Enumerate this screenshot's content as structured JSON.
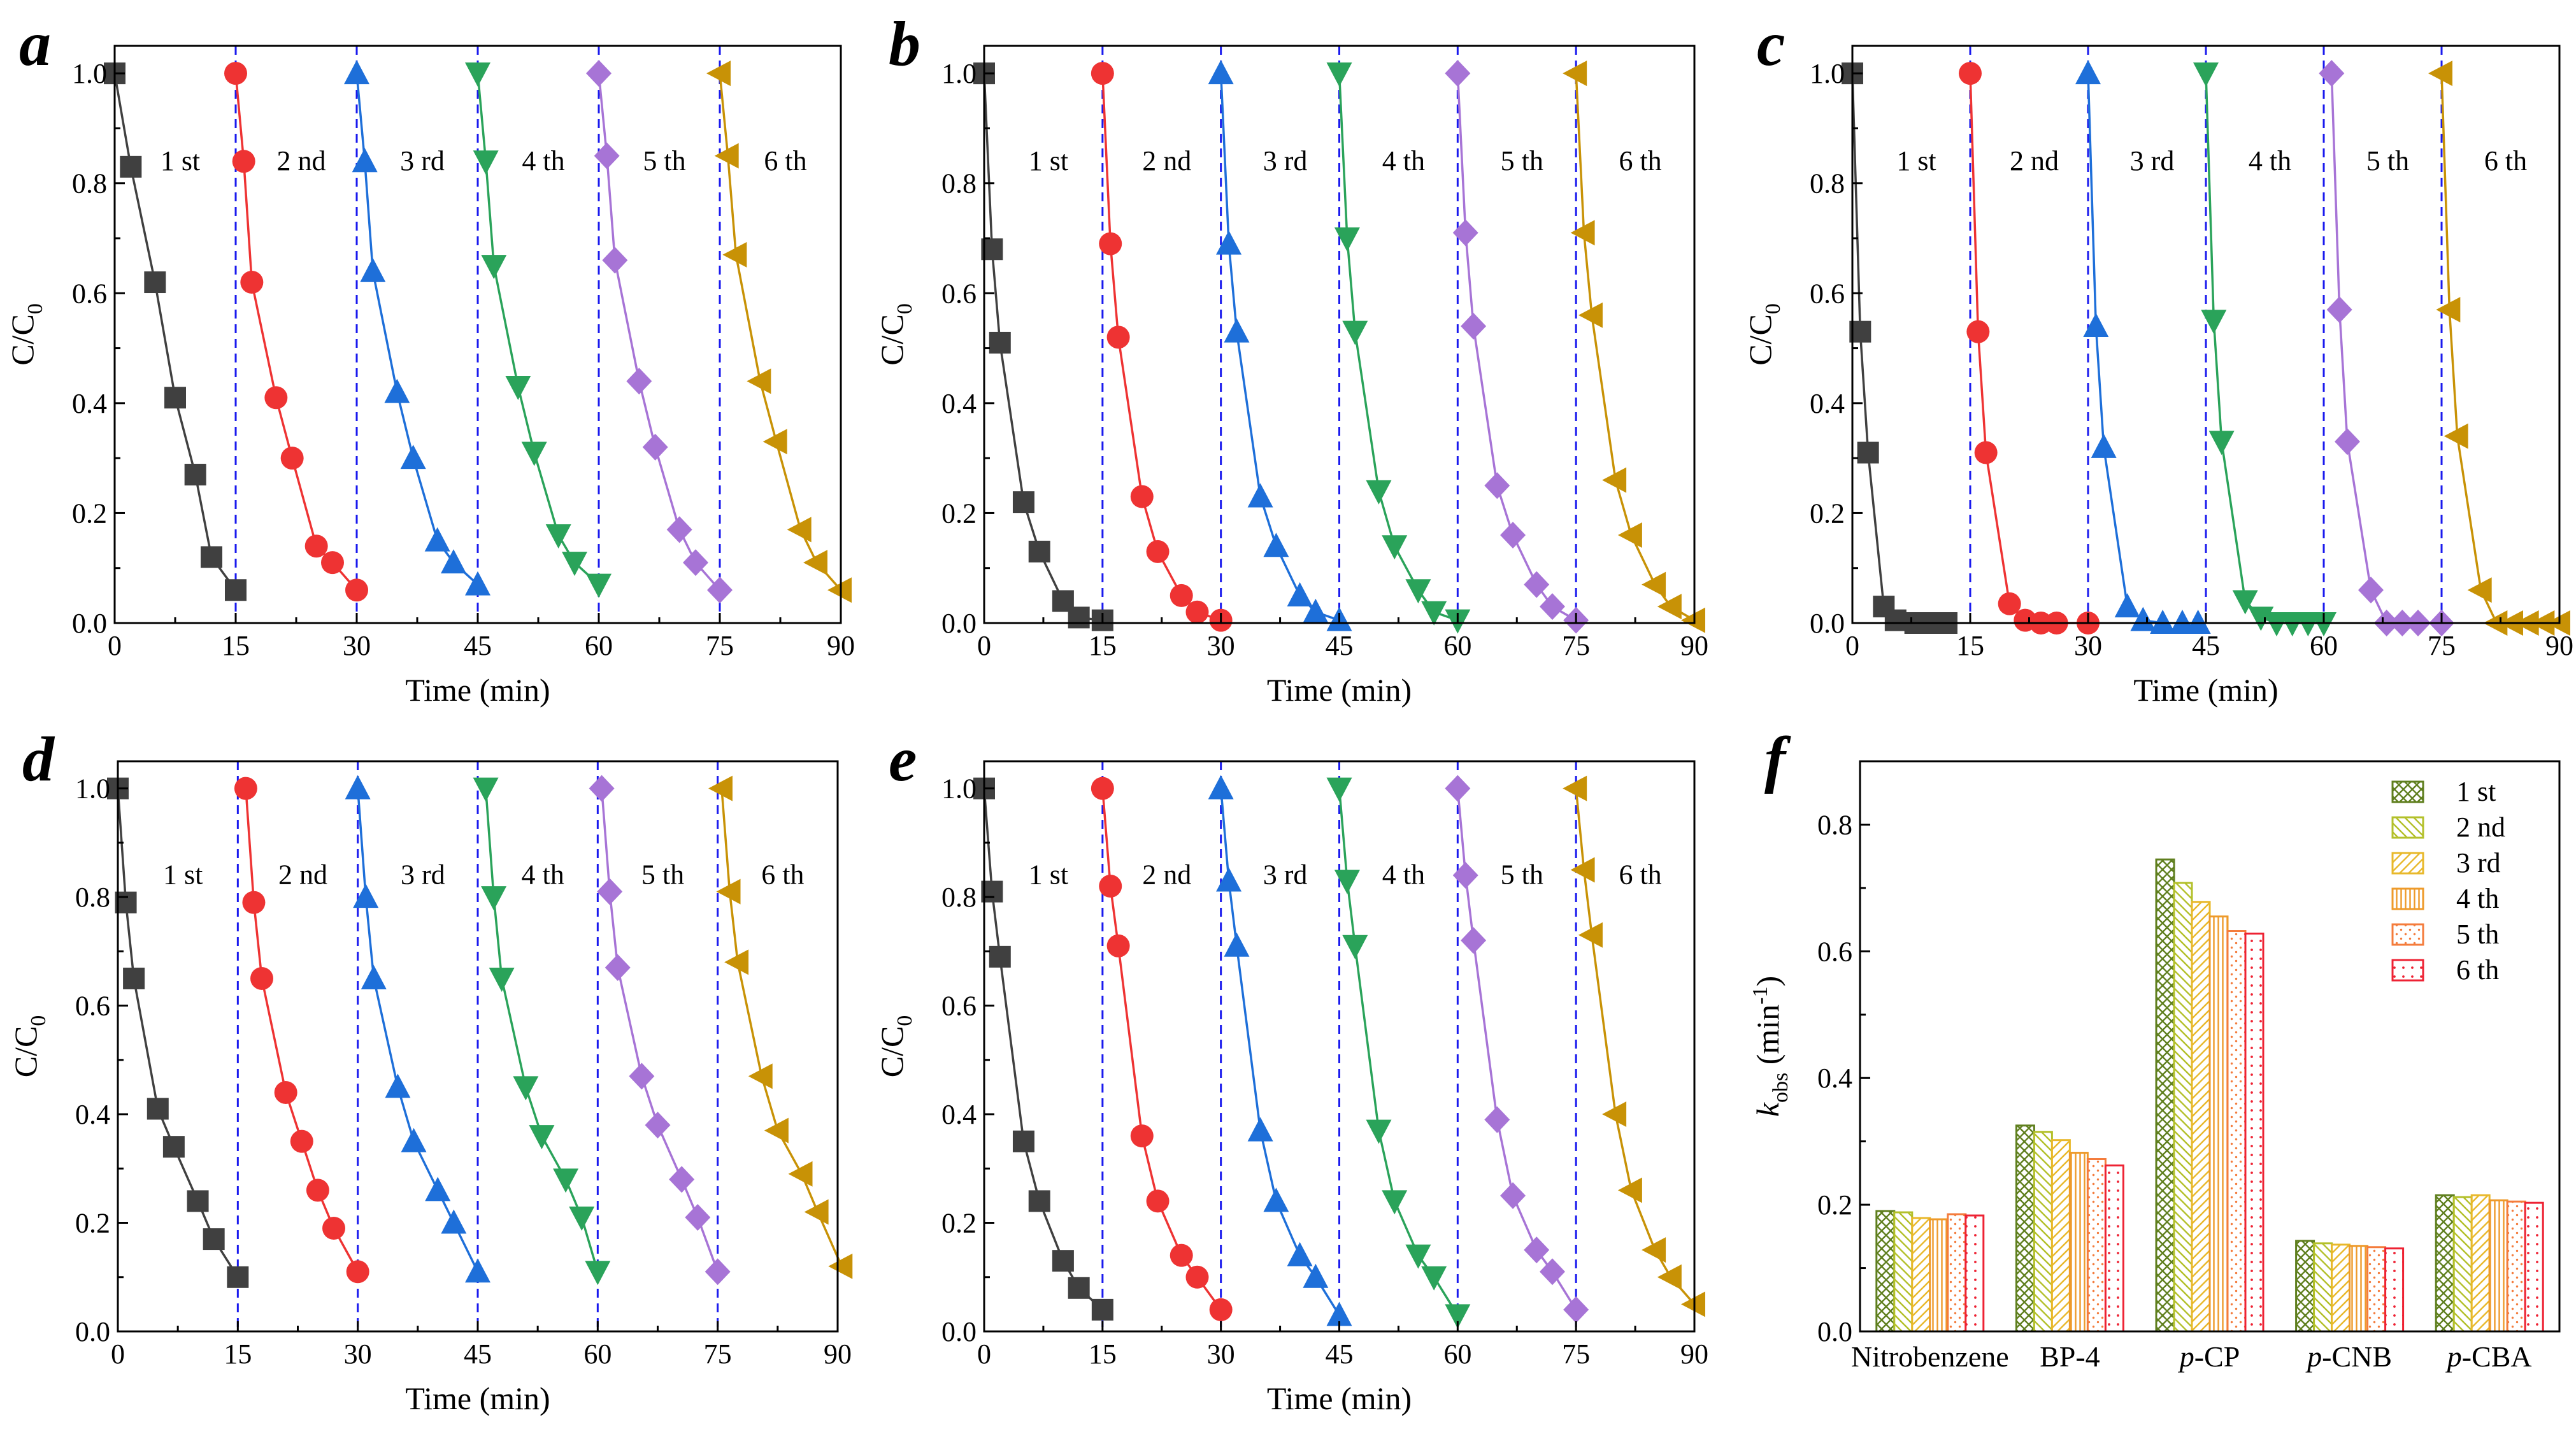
{
  "figure": {
    "run_labels": [
      "1 st",
      "2 nd",
      "3 rd",
      "4 th",
      "5 th",
      "6 th"
    ],
    "colors": {
      "run1": "#404040",
      "run2": "#ee3333",
      "run3": "#1e6fd9",
      "run4": "#2aa35a",
      "run5": "#a774d6",
      "run6": "#c89206",
      "divider": "#1a1aee",
      "bar_a": "#5f7f1e",
      "bar_b": "#b3c02a",
      "bar_c": "#e8b82a",
      "bar_d": "#ee9a2a",
      "bar_e": "#f47c3c",
      "bar_f": "#ee2233"
    }
  },
  "chart_data": [
    {
      "panel": "a",
      "type": "line",
      "xlabel": "Time (min)",
      "ylabel": "C/C",
      "ylabel_sub": "0",
      "xlim": [
        0,
        90
      ],
      "ylim": [
        0,
        1.05
      ],
      "xticks": [
        "0",
        "15",
        "30",
        "45",
        "60",
        "75",
        "90"
      ],
      "yticks": [
        "0.0",
        "0.2",
        "0.4",
        "0.6",
        "0.8",
        "1.0"
      ],
      "dividers": [
        15,
        30,
        45,
        60,
        75
      ],
      "series": [
        {
          "name": "1 st",
          "x": [
            0,
            2,
            5,
            7.5,
            10,
            12,
            15
          ],
          "y": [
            1.0,
            0.83,
            0.62,
            0.41,
            0.27,
            0.12,
            0.06
          ]
        },
        {
          "name": "2 nd",
          "x": [
            15,
            16,
            17,
            20,
            22,
            25,
            27,
            30
          ],
          "y": [
            1.0,
            0.84,
            0.62,
            0.41,
            0.3,
            0.14,
            0.11,
            0.06
          ]
        },
        {
          "name": "3 rd",
          "x": [
            30,
            31,
            32,
            35,
            37,
            40,
            42,
            45
          ],
          "y": [
            1.0,
            0.84,
            0.64,
            0.42,
            0.3,
            0.15,
            0.11,
            0.07
          ]
        },
        {
          "name": "4 th",
          "x": [
            45,
            46,
            47,
            50,
            52,
            55,
            57,
            60
          ],
          "y": [
            1.0,
            0.84,
            0.65,
            0.43,
            0.31,
            0.16,
            0.11,
            0.07
          ]
        },
        {
          "name": "5 th",
          "x": [
            60,
            61,
            62,
            65,
            67,
            70,
            72,
            75
          ],
          "y": [
            1.0,
            0.85,
            0.66,
            0.44,
            0.32,
            0.17,
            0.11,
            0.06
          ]
        },
        {
          "name": "6 th",
          "x": [
            75,
            76,
            77,
            80,
            82,
            85,
            87,
            90
          ],
          "y": [
            1.0,
            0.85,
            0.67,
            0.44,
            0.33,
            0.17,
            0.11,
            0.06
          ]
        }
      ]
    },
    {
      "panel": "b",
      "type": "line",
      "xlabel": "Time (min)",
      "ylabel": "C/C",
      "ylabel_sub": "0",
      "xlim": [
        0,
        90
      ],
      "ylim": [
        0,
        1.05
      ],
      "xticks": [
        "0",
        "15",
        "30",
        "45",
        "60",
        "75",
        "90"
      ],
      "yticks": [
        "0.0",
        "0.2",
        "0.4",
        "0.6",
        "0.8",
        "1.0"
      ],
      "dividers": [
        15,
        30,
        45,
        60,
        75
      ],
      "series": [
        {
          "name": "1 st",
          "x": [
            0,
            1,
            2,
            5,
            7,
            10,
            12,
            15
          ],
          "y": [
            1.0,
            0.68,
            0.51,
            0.22,
            0.13,
            0.04,
            0.01,
            0.005
          ]
        },
        {
          "name": "2 nd",
          "x": [
            15,
            16,
            17,
            20,
            22,
            25,
            27,
            30
          ],
          "y": [
            1.0,
            0.69,
            0.52,
            0.23,
            0.13,
            0.05,
            0.02,
            0.005
          ]
        },
        {
          "name": "3 rd",
          "x": [
            30,
            31,
            32,
            35,
            37,
            40,
            42,
            45
          ],
          "y": [
            1.0,
            0.69,
            0.53,
            0.23,
            0.14,
            0.05,
            0.02,
            0.005
          ]
        },
        {
          "name": "4 th",
          "x": [
            45,
            46,
            47,
            50,
            52,
            55,
            57,
            60
          ],
          "y": [
            1.0,
            0.7,
            0.53,
            0.24,
            0.14,
            0.06,
            0.02,
            0.005
          ]
        },
        {
          "name": "5 th",
          "x": [
            60,
            61,
            62,
            65,
            67,
            70,
            72,
            75
          ],
          "y": [
            1.0,
            0.71,
            0.54,
            0.25,
            0.16,
            0.07,
            0.03,
            0.005
          ]
        },
        {
          "name": "6 th",
          "x": [
            75,
            76,
            77,
            80,
            82,
            85,
            87,
            90
          ],
          "y": [
            1.0,
            0.71,
            0.56,
            0.26,
            0.16,
            0.07,
            0.03,
            0.005
          ]
        }
      ]
    },
    {
      "panel": "c",
      "type": "line",
      "xlabel": "Time (min)",
      "ylabel": "C/C",
      "ylabel_sub": "0",
      "xlim": [
        0,
        90
      ],
      "ylim": [
        0,
        1.05
      ],
      "xticks": [
        "0",
        "15",
        "30",
        "45",
        "60",
        "75",
        "90"
      ],
      "yticks": [
        "0.0",
        "0.2",
        "0.4",
        "0.6",
        "0.8",
        "1.0"
      ],
      "dividers": [
        15,
        30,
        45,
        60,
        75
      ],
      "series": [
        {
          "name": "1 st",
          "x": [
            0,
            1,
            2,
            4,
            5.5,
            8,
            10,
            12
          ],
          "y": [
            1.0,
            0.53,
            0.31,
            0.03,
            0.005,
            0.0,
            0.0,
            0.0
          ]
        },
        {
          "name": "2 nd",
          "x": [
            15,
            16,
            17,
            20,
            22,
            24,
            26,
            30
          ],
          "y": [
            1.0,
            0.53,
            0.31,
            0.035,
            0.005,
            0.0,
            0.0,
            0.0
          ]
        },
        {
          "name": "3 rd",
          "x": [
            30,
            31,
            32,
            35,
            37,
            39.5,
            42,
            44
          ],
          "y": [
            1.0,
            0.54,
            0.32,
            0.03,
            0.005,
            0.0,
            0.0,
            0.0
          ]
        },
        {
          "name": "4 th",
          "x": [
            45,
            46,
            47,
            50,
            52,
            54,
            56,
            58,
            60
          ],
          "y": [
            1.0,
            0.55,
            0.33,
            0.04,
            0.01,
            0.0,
            0.0,
            0.0,
            0.0
          ]
        },
        {
          "name": "5 th",
          "x": [
            61,
            62,
            63,
            66,
            68,
            70,
            72,
            75
          ],
          "y": [
            1.0,
            0.57,
            0.33,
            0.06,
            0.0,
            0.0,
            0.0,
            0.0
          ]
        },
        {
          "name": "6 th",
          "x": [
            75,
            76,
            77,
            80,
            82,
            84,
            86,
            88,
            90
          ],
          "y": [
            1.0,
            0.57,
            0.34,
            0.06,
            0.0,
            0.0,
            0.0,
            0.0,
            0.0
          ]
        }
      ]
    },
    {
      "panel": "d",
      "type": "line",
      "xlabel": "Time (min)",
      "ylabel": "C/C",
      "ylabel_sub": "0",
      "xlim": [
        0,
        90
      ],
      "ylim": [
        0,
        1.05
      ],
      "xticks": [
        "0",
        "15",
        "30",
        "45",
        "60",
        "75",
        "90"
      ],
      "yticks": [
        "0.0",
        "0.2",
        "0.4",
        "0.6",
        "0.8",
        "1.0"
      ],
      "dividers": [
        15,
        30,
        45,
        60,
        75
      ],
      "series": [
        {
          "name": "1 st",
          "x": [
            0,
            1,
            2,
            5,
            7,
            10,
            12,
            15
          ],
          "y": [
            1.0,
            0.79,
            0.65,
            0.41,
            0.34,
            0.24,
            0.17,
            0.1
          ]
        },
        {
          "name": "2 nd",
          "x": [
            16,
            17,
            18,
            21,
            23,
            25,
            27,
            30
          ],
          "y": [
            1.0,
            0.79,
            0.65,
            0.44,
            0.35,
            0.26,
            0.19,
            0.11
          ]
        },
        {
          "name": "3 rd",
          "x": [
            30,
            31,
            32,
            35,
            37,
            40,
            42,
            45
          ],
          "y": [
            1.0,
            0.8,
            0.65,
            0.45,
            0.35,
            0.26,
            0.2,
            0.11
          ]
        },
        {
          "name": "4 th",
          "x": [
            46,
            47,
            48,
            51,
            53,
            56,
            58,
            60
          ],
          "y": [
            1.0,
            0.8,
            0.65,
            0.45,
            0.36,
            0.28,
            0.21,
            0.11
          ]
        },
        {
          "name": "5 th",
          "x": [
            60.5,
            61.5,
            62.5,
            65.5,
            67.5,
            70.5,
            72.5,
            75
          ],
          "y": [
            1.0,
            0.81,
            0.67,
            0.47,
            0.38,
            0.28,
            0.21,
            0.11
          ]
        },
        {
          "name": "6 th",
          "x": [
            75.5,
            76.5,
            77.5,
            80.5,
            82.5,
            85.5,
            87.5,
            90.5
          ],
          "y": [
            1.0,
            0.81,
            0.68,
            0.47,
            0.37,
            0.29,
            0.22,
            0.12
          ]
        }
      ]
    },
    {
      "panel": "e",
      "type": "line",
      "xlabel": "Time (min)",
      "ylabel": "C/C",
      "ylabel_sub": "0",
      "xlim": [
        0,
        90
      ],
      "ylim": [
        0,
        1.05
      ],
      "xticks": [
        "0",
        "15",
        "30",
        "45",
        "60",
        "75",
        "90"
      ],
      "yticks": [
        "0.0",
        "0.2",
        "0.4",
        "0.6",
        "0.8",
        "1.0"
      ],
      "dividers": [
        15,
        30,
        45,
        60,
        75
      ],
      "series": [
        {
          "name": "1 st",
          "x": [
            0,
            1,
            2,
            5,
            7,
            10,
            12,
            15
          ],
          "y": [
            1.0,
            0.81,
            0.69,
            0.35,
            0.24,
            0.13,
            0.08,
            0.04
          ]
        },
        {
          "name": "2 nd",
          "x": [
            15,
            16,
            17,
            20,
            22,
            25,
            27,
            30
          ],
          "y": [
            1.0,
            0.82,
            0.71,
            0.36,
            0.24,
            0.14,
            0.1,
            0.04
          ]
        },
        {
          "name": "3 rd",
          "x": [
            30,
            31,
            32,
            35,
            37,
            40,
            42,
            45
          ],
          "y": [
            1.0,
            0.83,
            0.71,
            0.37,
            0.24,
            0.14,
            0.1,
            0.03
          ]
        },
        {
          "name": "4 th",
          "x": [
            45,
            46,
            47,
            50,
            52,
            55,
            57,
            60
          ],
          "y": [
            1.0,
            0.83,
            0.71,
            0.37,
            0.24,
            0.14,
            0.1,
            0.03
          ]
        },
        {
          "name": "5 th",
          "x": [
            60,
            61,
            62,
            65,
            67,
            70,
            72,
            75
          ],
          "y": [
            1.0,
            0.84,
            0.72,
            0.39,
            0.25,
            0.15,
            0.11,
            0.04
          ]
        },
        {
          "name": "6 th",
          "x": [
            75,
            76,
            77,
            80,
            82,
            85,
            87,
            90
          ],
          "y": [
            1.0,
            0.85,
            0.73,
            0.4,
            0.26,
            0.15,
            0.1,
            0.05
          ]
        }
      ]
    },
    {
      "panel": "f",
      "type": "bar",
      "categories": [
        {
          "prefix": "",
          "name": "Nitrobenzene"
        },
        {
          "prefix": "",
          "name": "BP-4"
        },
        {
          "prefix": "p",
          "name": "-CP"
        },
        {
          "prefix": "p",
          "name": "-CNB"
        },
        {
          "prefix": "p",
          "name": "-CBA"
        }
      ],
      "ylabel_main": "k",
      "ylabel_sub": "obs",
      "ylabel_unit": " (min",
      "ylabel_sup": "-1",
      "ylabel_end": ")",
      "ylim": [
        0,
        0.9
      ],
      "yticks": [
        "0.0",
        "0.2",
        "0.4",
        "0.6",
        "0.8"
      ],
      "series": [
        {
          "name": "1 st",
          "values": [
            0.19,
            0.325,
            0.745,
            0.143,
            0.215
          ]
        },
        {
          "name": "2 nd",
          "values": [
            0.188,
            0.315,
            0.708,
            0.139,
            0.212
          ]
        },
        {
          "name": "3 rd",
          "values": [
            0.179,
            0.302,
            0.678,
            0.137,
            0.215
          ]
        },
        {
          "name": "4 th",
          "values": [
            0.177,
            0.282,
            0.655,
            0.135,
            0.207
          ]
        },
        {
          "name": "5 th",
          "values": [
            0.185,
            0.272,
            0.632,
            0.133,
            0.205
          ]
        },
        {
          "name": "6 th",
          "values": [
            0.183,
            0.262,
            0.628,
            0.131,
            0.203
          ]
        }
      ]
    }
  ]
}
